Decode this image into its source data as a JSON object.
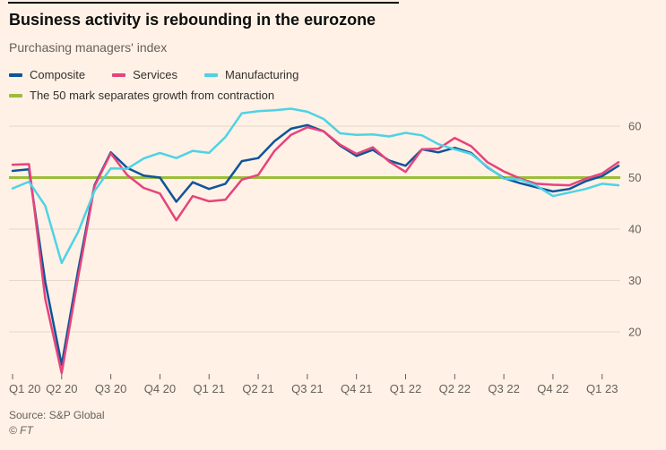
{
  "header": {
    "title": "Business activity is rebounding in the eurozone",
    "subtitle": "Purchasing managers' index"
  },
  "legend": [
    {
      "label": "Composite",
      "color": "#0f5499"
    },
    {
      "label": "Services",
      "color": "#e6437c"
    },
    {
      "label": "Manufacturing",
      "color": "#4fd2e5"
    }
  ],
  "threshold_legend": {
    "label": "The 50 mark separates growth from contraction",
    "color": "#9cbd3a"
  },
  "footer": {
    "source": "Source: S&P Global",
    "copyright": "© FT"
  },
  "chart_data": {
    "type": "line",
    "title": "Business activity is rebounding in the eurozone",
    "subtitle": "Purchasing managers' index",
    "ylabel": "",
    "xlabel": "",
    "ylim": [
      10,
      65
    ],
    "yticks": [
      20,
      30,
      40,
      50,
      60
    ],
    "threshold": 50,
    "grid": "horizontal",
    "legend_position": "top-left",
    "x": [
      "Jan 2020",
      "Feb 2020",
      "Mar 2020",
      "Apr 2020",
      "May 2020",
      "Jun 2020",
      "Jul 2020",
      "Aug 2020",
      "Sep 2020",
      "Oct 2020",
      "Nov 2020",
      "Dec 2020",
      "Jan 2021",
      "Feb 2021",
      "Mar 2021",
      "Apr 2021",
      "May 2021",
      "Jun 2021",
      "Jul 2021",
      "Aug 2021",
      "Sep 2021",
      "Oct 2021",
      "Nov 2021",
      "Dec 2021",
      "Jan 2022",
      "Feb 2022",
      "Mar 2022",
      "Apr 2022",
      "May 2022",
      "Jun 2022",
      "Jul 2022",
      "Aug 2022",
      "Sep 2022",
      "Oct 2022",
      "Nov 2022",
      "Dec 2022",
      "Jan 2023",
      "Feb 2023"
    ],
    "x_tick_labels": [
      "Q1 20",
      "Q2 20",
      "Q3 20",
      "Q4 20",
      "Q1 21",
      "Q2 21",
      "Q3 21",
      "Q4 21",
      "Q1 22",
      "Q2 22",
      "Q3 22",
      "Q4 22",
      "Q1 23"
    ],
    "x_tick_every": 3,
    "series": [
      {
        "name": "Composite",
        "color": "#0f5499",
        "values": [
          51.3,
          51.6,
          29.7,
          13.6,
          31.9,
          48.5,
          54.9,
          51.9,
          50.4,
          50.0,
          45.3,
          49.1,
          47.8,
          48.8,
          53.2,
          53.8,
          57.1,
          59.5,
          60.2,
          59.0,
          56.2,
          54.2,
          55.4,
          53.3,
          52.3,
          55.5,
          54.9,
          55.8,
          54.8,
          52.0,
          49.9,
          48.9,
          48.1,
          47.3,
          47.8,
          49.3,
          50.3,
          52.3
        ]
      },
      {
        "name": "Services",
        "color": "#e6437c",
        "values": [
          52.5,
          52.6,
          26.4,
          12.0,
          30.5,
          48.3,
          54.7,
          50.5,
          48.0,
          46.9,
          41.7,
          46.4,
          45.4,
          45.7,
          49.6,
          50.5,
          55.2,
          58.3,
          59.8,
          59.0,
          56.4,
          54.6,
          55.9,
          53.1,
          51.1,
          55.5,
          55.6,
          57.7,
          56.1,
          53.0,
          51.2,
          49.8,
          48.8,
          48.6,
          48.5,
          49.8,
          50.8,
          53.0
        ]
      },
      {
        "name": "Manufacturing",
        "color": "#4fd2e5",
        "values": [
          47.9,
          49.2,
          44.5,
          33.4,
          39.4,
          47.4,
          51.8,
          51.7,
          53.7,
          54.8,
          53.8,
          55.2,
          54.8,
          57.9,
          62.5,
          62.9,
          63.1,
          63.4,
          62.8,
          61.4,
          58.6,
          58.3,
          58.4,
          58.0,
          58.7,
          58.2,
          56.5,
          55.5,
          54.6,
          52.1,
          49.8,
          49.6,
          48.4,
          46.4,
          47.1,
          47.8,
          48.8,
          48.5
        ]
      }
    ]
  }
}
